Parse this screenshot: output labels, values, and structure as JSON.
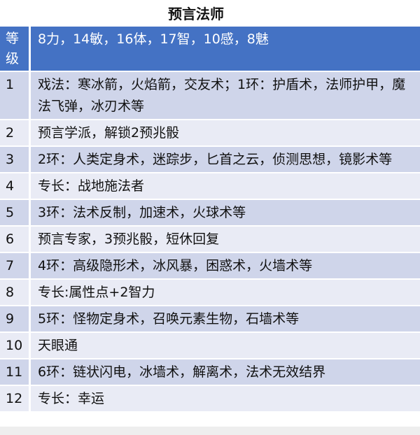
{
  "title": "预言法师",
  "header": {
    "level_label": "等级",
    "stats": "8力，14敏，16体，17智，10感，8魅"
  },
  "rows": [
    {
      "level": "1",
      "content": "戏法：寒冰箭，火焰箭，交友术；1环：护盾术，法师护甲，魔法飞弹，冰刃术等"
    },
    {
      "level": "2",
      "content": "预言学派，解锁2预兆骰"
    },
    {
      "level": "3",
      "content": "2环：人类定身术，迷踪步，匕首之云，侦测思想，镜影术等"
    },
    {
      "level": "4",
      "content": "专长：战地施法者"
    },
    {
      "level": "5",
      "content": "3环：法术反制，加速术，火球术等"
    },
    {
      "level": "6",
      "content": "预言专家，3预兆骰，短休回复"
    },
    {
      "level": "7",
      "content": "4环：高级隐形术，冰风暴，困惑术，火墙术等"
    },
    {
      "level": "8",
      "content": "专长:属性点+2智力"
    },
    {
      "level": "9",
      "content": "5环：怪物定身术，召唤元素生物，石墙术等"
    },
    {
      "level": "10",
      "content": "天眼通"
    },
    {
      "level": "11",
      "content": "6环：链状闪电，冰墙术，解离术，法术无效结界"
    },
    {
      "level": "12",
      "content": "专长：幸运"
    }
  ],
  "colors": {
    "header": "#4472C4",
    "row_odd": "#CFD5EA",
    "row_even": "#E9EBF5"
  }
}
